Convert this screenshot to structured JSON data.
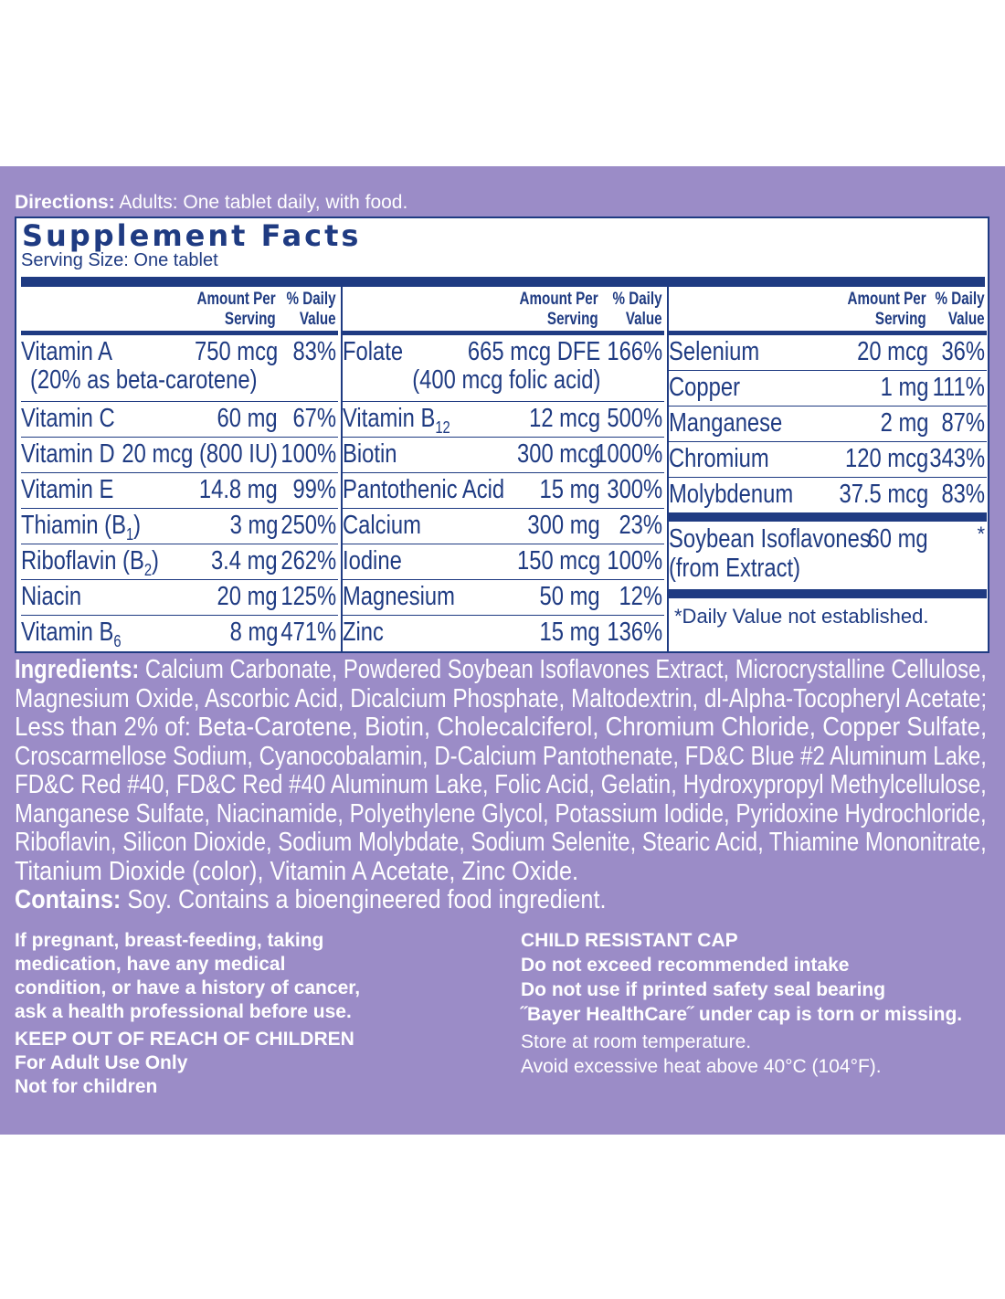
{
  "directions": {
    "label": "Directions:",
    "text": " Adults: One tablet daily, with food."
  },
  "facts": {
    "title": "Supplement Facts",
    "serving": "Serving Size: One tablet",
    "headers": {
      "amount_1": "Amount Per",
      "amount_2": "Serving",
      "dv_1": "% Daily",
      "dv_2": "Value"
    },
    "col1": [
      {
        "name": "Vitamin A",
        "amount": "750 mcg",
        "dv": "83%",
        "sub": "(20% as beta-carotene)"
      },
      {
        "name": "Vitamin C",
        "amount": "60 mg",
        "dv": "67%"
      },
      {
        "name": "Vitamin D",
        "amount": "20 mcg (800 IU)",
        "dv": "100%"
      },
      {
        "name": "Vitamin E",
        "amount": "14.8 mg",
        "dv": "99%"
      },
      {
        "name": "Thiamin (B",
        "subscript": "1",
        "name_tail": ")",
        "amount": "3 mg",
        "dv": "250%"
      },
      {
        "name": "Riboflavin (B",
        "subscript": "2",
        "name_tail": ")",
        "amount": "3.4 mg",
        "dv": "262%"
      },
      {
        "name": "Niacin",
        "amount": "20 mg",
        "dv": "125%"
      },
      {
        "name": "Vitamin B",
        "subscript": "6",
        "amount": "8 mg",
        "dv": "471%"
      }
    ],
    "col2": [
      {
        "name": "Folate",
        "amount": "665 mcg DFE",
        "dv": "166%",
        "sub": "(400 mcg folic acid)"
      },
      {
        "name": "Vitamin B",
        "subscript": "12",
        "amount": "12 mcg",
        "dv": "500%"
      },
      {
        "name": "Biotin",
        "amount": "300 mcg",
        "dv": "1000%"
      },
      {
        "name": "Pantothenic Acid",
        "amount": "15 mg",
        "dv": "300%"
      },
      {
        "name": "Calcium",
        "amount": "300 mg",
        "dv": "23%"
      },
      {
        "name": "Iodine",
        "amount": "150 mcg",
        "dv": "100%"
      },
      {
        "name": "Magnesium",
        "amount": "50 mg",
        "dv": "12%"
      },
      {
        "name": "Zinc",
        "amount": "15 mg",
        "dv": "136%"
      }
    ],
    "col3": [
      {
        "name": "Selenium",
        "amount": "20 mcg",
        "dv": "36%"
      },
      {
        "name": "Copper",
        "amount": "1 mg",
        "dv": "111%"
      },
      {
        "name": "Manganese",
        "amount": "2 mg",
        "dv": "87%"
      },
      {
        "name": "Chromium",
        "amount": "120 mcg",
        "dv": "343%"
      },
      {
        "name": "Molybdenum",
        "amount": "37.5 mcg",
        "dv": "83%"
      }
    ],
    "soy": {
      "name": "Soybean Isoflavones",
      "amount": "60 mg",
      "dv": "*",
      "sub": "(from Extract)"
    },
    "dv_note": "*Daily Value not established."
  },
  "ingredients": {
    "label": "Ingredients:",
    "lines": [
      " Calcium Carbonate, Powdered Soybean Isoflavones Extract, Microcrystalline Cellulose,",
      "Magnesium Oxide, Ascorbic Acid, Dicalcium Phosphate, Maltodextrin, dl-Alpha-Tocopheryl Acetate;",
      "Less than 2% of: Beta-Carotene, Biotin, Cholecalciferol, Chromium Chloride, Copper Sulfate,",
      "Croscarmellose Sodium, Cyanocobalamin, D-Calcium Pantothenate, FD&C Blue #2 Aluminum Lake,",
      "FD&C Red #40, FD&C Red #40 Aluminum Lake, Folic Acid, Gelatin, Hydroxypropyl Methylcellulose,",
      "Manganese Sulfate, Niacinamide, Polyethylene Glycol, Potassium Iodide, Pyridoxine Hydrochloride,",
      "Riboflavin, Silicon Dioxide, Sodium Molybdate, Sodium Selenite, Stearic Acid, Thiamine Mononitrate,",
      "Titanium Dioxide (color), Vitamin A Acetate, Zinc Oxide."
    ],
    "contains_label": "Contains:",
    "contains_text": " Soy.  Contains a bioengineered food ingredient."
  },
  "warnings_left": [
    "If pregnant, breast-feeding, taking",
    "medication, have any medical",
    "condition, or have a history of cancer,",
    "ask a health professional before use.",
    "KEEP OUT OF REACH OF CHILDREN",
    "For Adult Use Only",
    "Not for children"
  ],
  "warnings_right": [
    "CHILD RESISTANT CAP",
    "Do not exceed recommended intake",
    "Do not use if printed safety seal bearing",
    "˝Bayer HealthCare˝ under cap is torn or missing.",
    "Store at room temperature.",
    "Avoid excessive heat above 40°C (104°F)."
  ],
  "colors": {
    "panel": "#9b8cc7",
    "label_blue": "#1f3b82",
    "text_white": "#ffffff"
  }
}
